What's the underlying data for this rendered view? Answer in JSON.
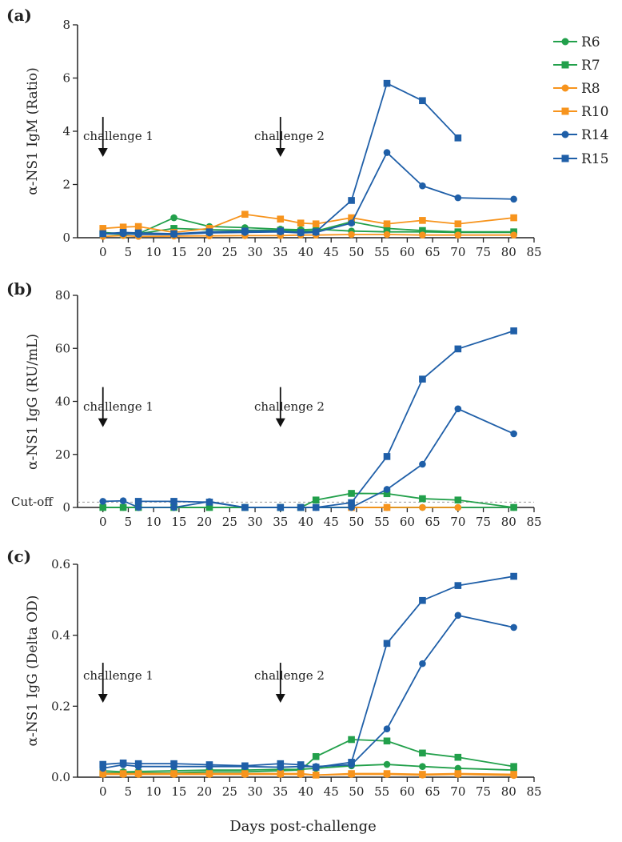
{
  "xlabel": "Days post-challenge",
  "panels": [
    {
      "tag": "(a)",
      "ylabel": "α-NS1 IgM (Ratio)",
      "annotations": [
        "challenge 1",
        "challenge 2"
      ]
    },
    {
      "tag": "(b)",
      "ylabel": "α-NS1 IgG (RU/mL)",
      "annotations": [
        "challenge 1",
        "challenge 2"
      ],
      "cutoff_label": "Cut-off"
    },
    {
      "tag": "(c)",
      "ylabel": "α-NS1 IgG (Delta OD)",
      "annotations": [
        "challenge 1",
        "challenge 2"
      ]
    }
  ],
  "legend": [
    {
      "name": "R6",
      "color": "#22a04b",
      "marker": "circle"
    },
    {
      "name": "R7",
      "color": "#22a04b",
      "marker": "square"
    },
    {
      "name": "R8",
      "color": "#f7941d",
      "marker": "circle"
    },
    {
      "name": "R10",
      "color": "#f7941d",
      "marker": "square"
    },
    {
      "name": "R14",
      "color": "#1f5fa8",
      "marker": "circle"
    },
    {
      "name": "R15",
      "color": "#1f5fa8",
      "marker": "square"
    }
  ],
  "chart_data": [
    {
      "type": "line",
      "title": "(a)",
      "ylabel": "α-NS1 IgM (Ratio)",
      "xlabel": "",
      "xlim": [
        -5,
        85
      ],
      "ylim": [
        0,
        8
      ],
      "xticks": [
        0,
        5,
        10,
        15,
        20,
        25,
        30,
        35,
        40,
        45,
        50,
        55,
        60,
        65,
        70,
        75,
        80,
        85
      ],
      "yticks": [
        0,
        2,
        4,
        6,
        8
      ],
      "annotations": [
        {
          "text": "challenge 1",
          "x": 0
        },
        {
          "text": "challenge 2",
          "x": 35
        }
      ],
      "series": [
        {
          "name": "R6",
          "color": "#22a04b",
          "marker": "circle",
          "x": [
            0,
            4,
            7,
            14,
            21,
            28,
            35,
            39,
            42,
            49,
            56,
            63,
            70,
            81
          ],
          "y": [
            0.2,
            0.15,
            0.15,
            0.75,
            0.42,
            0.38,
            0.32,
            0.3,
            0.32,
            0.25,
            0.22,
            0.22,
            0.2,
            0.2
          ]
        },
        {
          "name": "R7",
          "color": "#22a04b",
          "marker": "square",
          "x": [
            0,
            4,
            7,
            14,
            21,
            28,
            35,
            39,
            42,
            49,
            56,
            63,
            70,
            81
          ],
          "y": [
            0.15,
            0.12,
            0.15,
            0.35,
            0.3,
            0.28,
            0.28,
            0.25,
            0.25,
            0.6,
            0.35,
            0.27,
            0.22,
            0.22
          ]
        },
        {
          "name": "R8",
          "color": "#f7941d",
          "marker": "circle",
          "x": [
            0,
            4,
            7,
            14,
            21,
            28,
            35,
            39,
            42,
            49,
            56,
            63,
            70,
            81
          ],
          "y": [
            0.05,
            0.08,
            0.05,
            0.06,
            0.07,
            0.08,
            0.08,
            0.1,
            0.1,
            0.12,
            0.12,
            0.1,
            0.1,
            0.1
          ]
        },
        {
          "name": "R10",
          "color": "#f7941d",
          "marker": "square",
          "x": [
            0,
            4,
            7,
            14,
            21,
            28,
            35,
            39,
            42,
            49,
            56,
            63,
            70,
            81
          ],
          "y": [
            0.35,
            0.4,
            0.42,
            0.2,
            0.35,
            0.88,
            0.7,
            0.55,
            0.52,
            0.75,
            0.52,
            0.65,
            0.52,
            0.75
          ]
        },
        {
          "name": "R14",
          "color": "#1f5fa8",
          "marker": "circle",
          "x": [
            0,
            4,
            7,
            14,
            21,
            28,
            35,
            39,
            42,
            49,
            56,
            63,
            70,
            81
          ],
          "y": [
            0.15,
            0.15,
            0.12,
            0.12,
            0.18,
            0.2,
            0.22,
            0.18,
            0.2,
            0.55,
            3.2,
            1.95,
            1.5,
            1.45
          ]
        },
        {
          "name": "R15",
          "color": "#1f5fa8",
          "marker": "square",
          "x": [
            0,
            4,
            7,
            14,
            21,
            28,
            35,
            39,
            42,
            49,
            56,
            63,
            70
          ],
          "y": [
            0.15,
            0.2,
            0.18,
            0.15,
            0.22,
            0.25,
            0.25,
            0.2,
            0.22,
            1.4,
            5.8,
            5.15,
            3.75
          ]
        }
      ]
    },
    {
      "type": "line",
      "title": "(b)",
      "ylabel": "α-NS1 IgG (RU/mL)",
      "xlabel": "",
      "xlim": [
        -5,
        85
      ],
      "ylim": [
        0,
        80
      ],
      "xticks": [
        0,
        5,
        10,
        15,
        20,
        25,
        30,
        35,
        40,
        45,
        50,
        55,
        60,
        65,
        70,
        75,
        80,
        85
      ],
      "yticks": [
        0,
        20,
        40,
        60,
        80
      ],
      "cutoff": {
        "label": "Cut-off",
        "y": 2
      },
      "annotations": [
        {
          "text": "challenge 1",
          "x": 0
        },
        {
          "text": "challenge 2",
          "x": 35
        }
      ],
      "series": [
        {
          "name": "R6",
          "color": "#22a04b",
          "marker": "circle",
          "x": [
            0,
            4,
            7,
            14,
            21,
            28,
            35,
            39,
            42,
            49,
            56,
            63,
            70,
            81
          ],
          "y": [
            0,
            0,
            0,
            0,
            0,
            0,
            0,
            0,
            0,
            0,
            0,
            0,
            0,
            0
          ]
        },
        {
          "name": "R7",
          "color": "#22a04b",
          "marker": "square",
          "x": [
            0,
            4,
            7,
            14,
            21,
            28,
            35,
            39,
            42,
            49,
            56,
            63,
            70,
            81
          ],
          "y": [
            0,
            0,
            0,
            0,
            0,
            0,
            0,
            0,
            2.8,
            5.3,
            5.2,
            3.3,
            2.8,
            0
          ]
        },
        {
          "name": "R8",
          "color": "#f7941d",
          "marker": "circle",
          "x": [
            49,
            56,
            63,
            70
          ],
          "y": [
            0,
            0,
            0,
            0
          ]
        },
        {
          "name": "R10",
          "color": "#f7941d",
          "marker": "square",
          "x": [
            49,
            56
          ],
          "y": [
            0,
            0
          ]
        },
        {
          "name": "R14",
          "color": "#1f5fa8",
          "marker": "circle",
          "x": [
            0,
            4,
            7,
            14,
            21,
            28,
            35,
            39,
            42,
            49,
            56,
            63,
            70,
            81
          ],
          "y": [
            2.3,
            2.5,
            0,
            0,
            2.2,
            0,
            0,
            0,
            0,
            0,
            6.8,
            16.3,
            37.2,
            27.8
          ]
        },
        {
          "name": "R15",
          "color": "#1f5fa8",
          "marker": "square",
          "x": [
            7,
            14,
            21,
            28,
            35,
            39,
            42,
            49,
            56,
            63,
            70,
            81
          ],
          "y": [
            2.3,
            2.3,
            2.0,
            0,
            0,
            0,
            0,
            1.8,
            19.2,
            48.4,
            59.8,
            66.6
          ]
        }
      ]
    },
    {
      "type": "line",
      "title": "(c)",
      "ylabel": "α-NS1 IgG (Delta OD)",
      "xlabel": "Days post-challenge",
      "xlim": [
        -5,
        85
      ],
      "ylim": [
        0,
        0.6
      ],
      "xticks": [
        0,
        5,
        10,
        15,
        20,
        25,
        30,
        35,
        40,
        45,
        50,
        55,
        60,
        65,
        70,
        75,
        80,
        85
      ],
      "yticks": [
        0.0,
        0.2,
        0.4,
        0.6
      ],
      "annotations": [
        {
          "text": "challenge 1",
          "x": 0
        },
        {
          "text": "challenge 2",
          "x": 35
        }
      ],
      "series": [
        {
          "name": "R6",
          "color": "#22a04b",
          "marker": "circle",
          "x": [
            0,
            4,
            7,
            14,
            21,
            28,
            35,
            39,
            42,
            49,
            56,
            63,
            70,
            81
          ],
          "y": [
            0.018,
            0.015,
            0.016,
            0.018,
            0.02,
            0.02,
            0.022,
            0.022,
            0.025,
            0.032,
            0.036,
            0.03,
            0.025,
            0.02
          ]
        },
        {
          "name": "R7",
          "color": "#22a04b",
          "marker": "square",
          "x": [
            0,
            4,
            7,
            14,
            21,
            28,
            35,
            39,
            42,
            49,
            56,
            63,
            70,
            81
          ],
          "y": [
            0.012,
            0.012,
            0.012,
            0.012,
            0.015,
            0.015,
            0.018,
            0.02,
            0.058,
            0.106,
            0.102,
            0.068,
            0.056,
            0.03
          ]
        },
        {
          "name": "R8",
          "color": "#f7941d",
          "marker": "circle",
          "x": [
            0,
            4,
            7,
            14,
            21,
            28,
            35,
            39,
            42,
            49,
            56,
            63,
            70,
            81
          ],
          "y": [
            0.008,
            0.008,
            0.008,
            0.008,
            0.008,
            0.008,
            0.008,
            0.008,
            0.006,
            0.008,
            0.008,
            0.006,
            0.008,
            0.005
          ]
        },
        {
          "name": "R10",
          "color": "#f7941d",
          "marker": "square",
          "x": [
            0,
            4,
            7,
            14,
            21,
            28,
            35,
            39,
            42,
            49,
            56,
            63,
            70,
            81
          ],
          "y": [
            0.01,
            0.01,
            0.01,
            0.01,
            0.01,
            0.01,
            0.01,
            0.01,
            0.006,
            0.01,
            0.01,
            0.008,
            0.01,
            0.008
          ]
        },
        {
          "name": "R14",
          "color": "#1f5fa8",
          "marker": "circle",
          "x": [
            0,
            4,
            7,
            14,
            21,
            28,
            35,
            39,
            42,
            49,
            56,
            63,
            70,
            81
          ],
          "y": [
            0.025,
            0.035,
            0.03,
            0.03,
            0.03,
            0.03,
            0.028,
            0.03,
            0.03,
            0.035,
            0.136,
            0.32,
            0.456,
            0.422
          ]
        },
        {
          "name": "R15",
          "color": "#1f5fa8",
          "marker": "square",
          "x": [
            0,
            4,
            7,
            14,
            21,
            28,
            35,
            39,
            42,
            49,
            56,
            63,
            70,
            81
          ],
          "y": [
            0.036,
            0.04,
            0.038,
            0.038,
            0.035,
            0.032,
            0.038,
            0.035,
            0.028,
            0.042,
            0.377,
            0.498,
            0.54,
            0.566
          ]
        }
      ]
    }
  ]
}
